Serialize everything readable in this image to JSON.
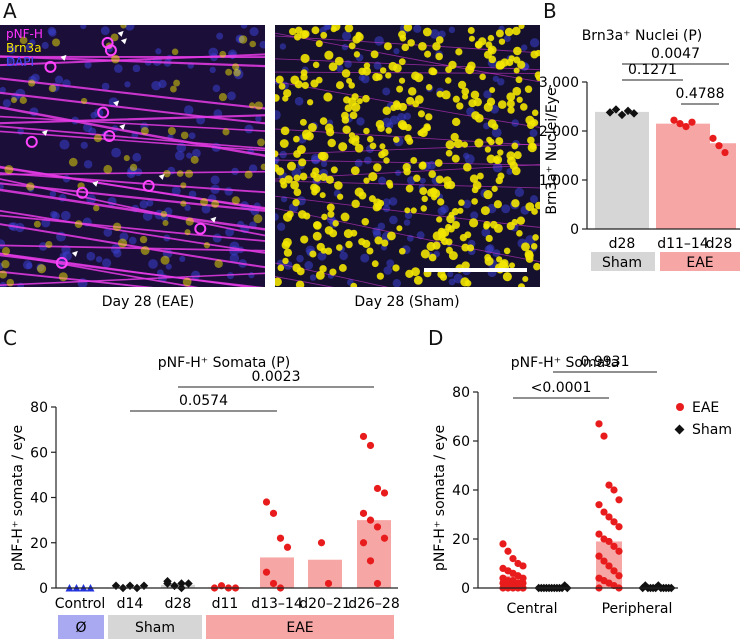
{
  "panels": {
    "A": "A",
    "B": "B",
    "C": "C",
    "D": "D"
  },
  "micrographs": {
    "eae_caption": "Day 28 (EAE)",
    "sham_caption": "Day 28 (Sham)",
    "channel_labels": [
      "pNF-H",
      "Brn3a",
      "DAPI"
    ],
    "channel_colors": [
      "#ff33ff",
      "#f2e600",
      "#3333ff"
    ]
  },
  "colors": {
    "eae_red": "#e81c1c",
    "eae_bar": "#f7a6a6",
    "sham_bar": "#d6d6d6",
    "control_blue": "#2233dd",
    "control_box": "#a9a9f2",
    "black": "#111111"
  },
  "chart_data": [
    {
      "id": "B",
      "type": "bar",
      "title": "Brn3a⁺ Nuclei (P)",
      "ylabel": "Brn3a⁺ Nuclei/Eye",
      "xlabel": "",
      "ylim": [
        0,
        3000
      ],
      "yticks": [
        0,
        1000,
        2000,
        3000
      ],
      "ytick_labels": [
        "0",
        "1,000",
        "2,000",
        "3,000"
      ],
      "categories": [
        "d28",
        "d11–14",
        "d28"
      ],
      "values": [
        2390,
        2150,
        1750
      ],
      "points": [
        [
          2380,
          2440,
          2330,
          2410,
          2360
        ],
        [
          2220,
          2150,
          2090,
          2180
        ],
        [
          1850,
          1700,
          1560
        ]
      ],
      "point_groups": [
        "Sham",
        "EAE",
        "EAE"
      ],
      "group_labels": [
        {
          "label": "Sham",
          "span": [
            0,
            0
          ],
          "style": "sham"
        },
        {
          "label": "EAE",
          "span": [
            1,
            2
          ],
          "style": "eae"
        }
      ],
      "comparisons": [
        {
          "from": 0,
          "to": 2,
          "p": "0.0047"
        },
        {
          "from": 0,
          "to": 1,
          "p": "0.1271"
        },
        {
          "from": 1,
          "to": 2,
          "p": "0.4788"
        }
      ]
    },
    {
      "id": "C",
      "type": "bar",
      "title": "pNF-H⁺ Somata (P)",
      "ylabel": "pNF-H⁺ somata / eye",
      "xlabel": "",
      "ylim": [
        0,
        80
      ],
      "yticks": [
        0,
        20,
        40,
        60,
        80
      ],
      "ytick_labels": [
        "0",
        "20",
        "40",
        "60",
        "80"
      ],
      "categories": [
        "Control",
        "d14",
        "d28",
        "d11",
        "d13–14",
        "d20–21",
        "d26–28"
      ],
      "values": [
        0,
        0.8,
        1.4,
        0.3,
        13.5,
        12.5,
        30
      ],
      "points": [
        [
          0,
          0,
          0,
          0
        ],
        [
          1,
          0,
          1,
          0,
          1
        ],
        [
          3,
          1,
          0,
          2,
          2,
          1,
          2
        ],
        [
          0,
          1,
          0,
          0
        ],
        [
          38,
          33,
          22,
          18,
          7,
          2,
          0
        ],
        [
          20,
          2
        ],
        [
          67,
          63,
          44,
          42,
          33,
          30,
          27,
          22,
          20,
          12,
          2
        ]
      ],
      "point_groups": [
        "Control",
        "Sham",
        "Sham",
        "EAE",
        "EAE",
        "EAE",
        "EAE"
      ],
      "group_labels": [
        {
          "label": "Ø",
          "span": [
            0,
            0
          ],
          "style": "control"
        },
        {
          "label": "Sham",
          "span": [
            1,
            2
          ],
          "style": "sham"
        },
        {
          "label": "EAE",
          "span": [
            3,
            6
          ],
          "style": "eae"
        }
      ],
      "comparisons": [
        {
          "from": 2,
          "to": 6,
          "p": "0.0023"
        },
        {
          "from": 1,
          "to": 4,
          "p": "0.0574"
        }
      ]
    },
    {
      "id": "D",
      "type": "bar",
      "title": "pNF-H⁺ Somata",
      "ylabel": "pNF-H⁺ somata / eye",
      "xlabel": "",
      "ylim": [
        0,
        80
      ],
      "yticks": [
        0,
        20,
        40,
        60,
        80
      ],
      "ytick_labels": [
        "0",
        "20",
        "40",
        "60",
        "80"
      ],
      "categories": [
        "Central",
        "Peripheral"
      ],
      "series": [
        {
          "name": "EAE",
          "values": [
            5,
            19
          ],
          "points": [
            [
              18,
              15,
              12,
              10,
              9,
              8,
              7,
              6,
              5,
              4,
              4,
              3,
              3,
              2,
              2,
              2,
              1,
              1,
              1,
              0,
              0,
              0,
              0,
              0,
              0
            ],
            [
              67,
              62,
              42,
              40,
              36,
              34,
              31,
              29,
              27,
              25,
              22,
              20,
              19,
              17,
              15,
              13,
              11,
              9,
              7,
              5,
              4,
              3,
              2,
              1,
              0,
              0
            ]
          ]
        },
        {
          "name": "Sham",
          "values": [
            0.3,
            0.5
          ],
          "points": [
            [
              0,
              0,
              0,
              0,
              0,
              0,
              0,
              0,
              0,
              0,
              1,
              0
            ],
            [
              0,
              1,
              0,
              0,
              0,
              0,
              1,
              0,
              0,
              0,
              0,
              0
            ]
          ]
        }
      ],
      "legend": [
        "EAE",
        "Sham"
      ],
      "legend_position": "top-right",
      "comparisons": [
        {
          "from": 0,
          "to": 1,
          "series": "EAE",
          "p": "<0.0001"
        },
        {
          "from": 0,
          "to": 1,
          "series": "Sham",
          "p": "0.9931"
        }
      ]
    }
  ]
}
